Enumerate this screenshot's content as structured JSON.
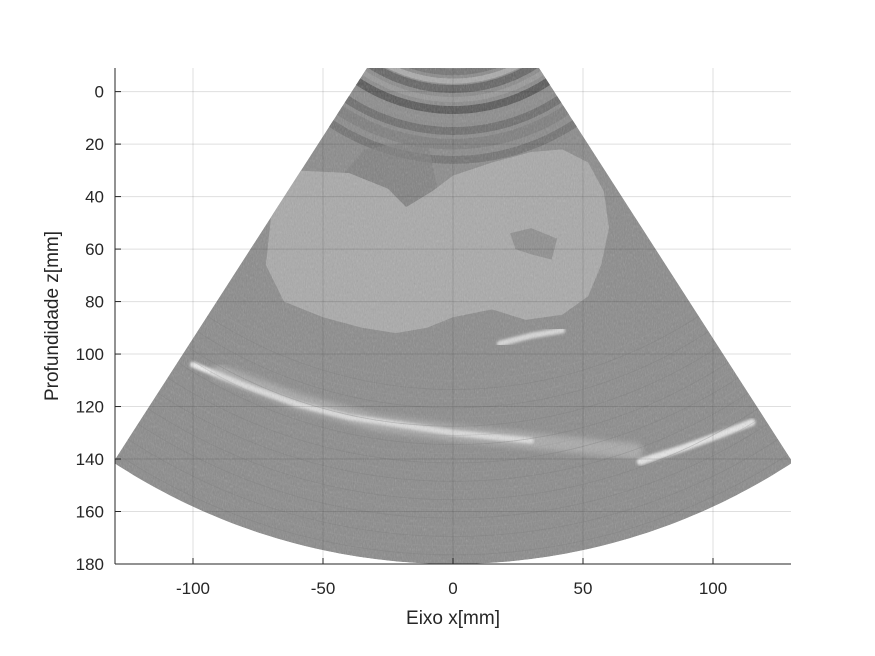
{
  "chart_data": {
    "type": "heatmap",
    "title": "",
    "xlabel": "Eixo x[mm]",
    "ylabel": "Profundidade z[mm]",
    "xlim": [
      -130,
      130
    ],
    "ylim": [
      180,
      -9
    ],
    "y_direction": "reversed",
    "grid": true,
    "colormap": "gray",
    "x_ticks": [
      -100,
      -50,
      0,
      50,
      100
    ],
    "x_tick_labels": [
      "-100",
      "-50",
      "0",
      "50",
      "100"
    ],
    "y_ticks": [
      0,
      20,
      40,
      60,
      80,
      100,
      120,
      140,
      160,
      180
    ],
    "y_tick_labels": [
      "0",
      "20",
      "40",
      "60",
      "80",
      "100",
      "120",
      "140",
      "160",
      "180"
    ],
    "sector": {
      "apex": [
        0,
        -60
      ],
      "inner_radius_mm": 51,
      "outer_radius_mm": 240,
      "half_angle_deg": 33,
      "background_gray": 138
    },
    "structures": [
      {
        "name": "lobed-echogenic-mass",
        "depth_range_mm": [
          22,
          92
        ],
        "x_range_mm": [
          -68,
          60
        ],
        "gray": 175
      },
      {
        "name": "bright-curved-reflector",
        "depth_range_mm": [
          103,
          132
        ],
        "x_range_mm": [
          -100,
          5
        ],
        "gray": 235
      },
      {
        "name": "right-bright-streak",
        "depth_range_mm": [
          128,
          142
        ],
        "x_range_mm": [
          70,
          115
        ],
        "gray": 215
      },
      {
        "name": "near-field-bands",
        "depth_range_mm": [
          -9,
          25
        ],
        "x_range_mm": [
          -30,
          32
        ],
        "gray": 95
      }
    ]
  }
}
